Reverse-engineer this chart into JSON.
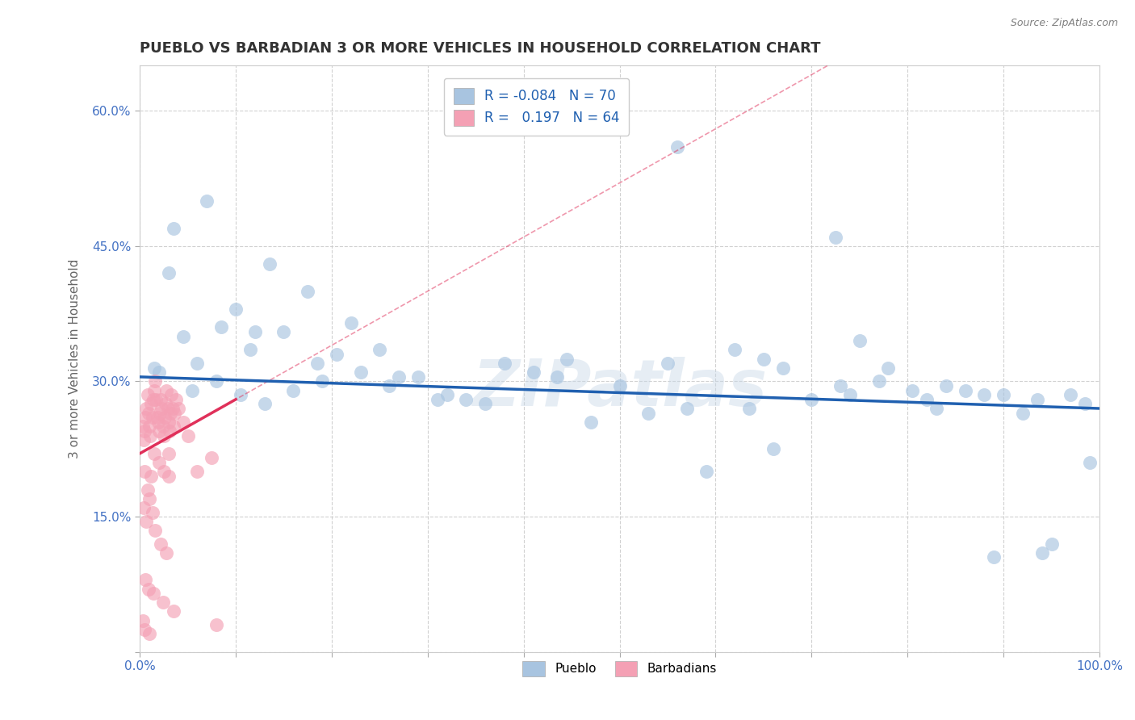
{
  "title": "PUEBLO VS BARBADIAN 3 OR MORE VEHICLES IN HOUSEHOLD CORRELATION CHART",
  "source_text": "Source: ZipAtlas.com",
  "ylabel": "3 or more Vehicles in Household",
  "xlim": [
    0,
    100
  ],
  "ylim": [
    0,
    65
  ],
  "xtick_positions": [
    0,
    10,
    20,
    30,
    40,
    50,
    60,
    70,
    80,
    90,
    100
  ],
  "xtick_labels": [
    "0.0%",
    "",
    "",
    "",
    "",
    "",
    "",
    "",
    "",
    "",
    "100.0%"
  ],
  "ytick_positions": [
    0,
    15,
    30,
    45,
    60
  ],
  "ytick_labels": [
    "",
    "15.0%",
    "30.0%",
    "45.0%",
    "60.0%"
  ],
  "legend_r_pueblo": "-0.084",
  "legend_n_pueblo": "70",
  "legend_r_barbadian": "0.197",
  "legend_n_barbadian": "64",
  "pueblo_color": "#a8c4e0",
  "barbadian_color": "#f4a0b4",
  "trend_pueblo_color": "#2060b0",
  "trend_barbadian_color": "#e0305a",
  "background_color": "#ffffff",
  "grid_color": "#cccccc",
  "watermark_text": "ZIPatlas",
  "title_color": "#333333",
  "axis_label_color": "#666666",
  "tick_color": "#4472c4",
  "title_fontsize": 13,
  "axis_label_fontsize": 11,
  "tick_fontsize": 11,
  "pueblo_x": [
    3.0,
    3.5,
    7.0,
    8.5,
    10.0,
    11.5,
    13.5,
    15.0,
    17.5,
    20.5,
    22.0,
    25.0,
    29.0,
    32.0,
    38.0,
    43.5,
    50.0,
    55.0,
    57.0,
    62.0,
    65.0,
    67.0,
    70.0,
    73.0,
    75.0,
    78.0,
    80.5,
    82.0,
    84.0,
    86.0,
    88.0,
    90.0,
    92.0,
    93.5,
    95.0,
    97.0,
    98.5,
    99.0,
    63.5,
    72.5,
    1.5,
    2.0,
    4.5,
    6.0,
    8.0,
    10.5,
    13.0,
    16.0,
    19.0,
    23.0,
    27.0,
    31.0,
    36.0,
    41.0,
    47.0,
    53.0,
    59.0,
    66.0,
    74.0,
    83.0,
    89.0,
    94.0,
    5.5,
    12.0,
    18.5,
    26.0,
    34.0,
    44.5,
    56.0,
    77.0
  ],
  "pueblo_y": [
    42.0,
    47.0,
    50.0,
    36.0,
    38.0,
    33.5,
    43.0,
    35.5,
    40.0,
    33.0,
    36.5,
    33.5,
    30.5,
    28.5,
    32.0,
    30.5,
    29.5,
    32.0,
    27.0,
    33.5,
    32.5,
    31.5,
    28.0,
    29.5,
    34.5,
    31.5,
    29.0,
    28.0,
    29.5,
    29.0,
    28.5,
    28.5,
    26.5,
    28.0,
    12.0,
    28.5,
    27.5,
    21.0,
    27.0,
    46.0,
    31.5,
    31.0,
    35.0,
    32.0,
    30.0,
    28.5,
    27.5,
    29.0,
    30.0,
    31.0,
    30.5,
    28.0,
    27.5,
    31.0,
    25.5,
    26.5,
    20.0,
    22.5,
    28.5,
    27.0,
    10.5,
    11.0,
    29.0,
    35.5,
    32.0,
    29.5,
    28.0,
    32.5,
    56.0,
    30.0
  ],
  "barbadian_x": [
    0.3,
    0.4,
    0.5,
    0.6,
    0.7,
    0.8,
    0.9,
    1.0,
    1.1,
    1.2,
    1.3,
    1.4,
    1.5,
    1.6,
    1.7,
    1.8,
    1.9,
    2.0,
    2.1,
    2.2,
    2.3,
    2.4,
    2.5,
    2.6,
    2.7,
    2.8,
    2.9,
    3.0,
    3.1,
    3.2,
    3.3,
    3.4,
    3.5,
    3.6,
    3.8,
    4.0,
    4.5,
    5.0,
    6.0,
    7.5,
    0.5,
    0.8,
    1.2,
    1.5,
    2.0,
    2.5,
    3.0,
    0.4,
    0.7,
    1.0,
    1.3,
    1.6,
    2.2,
    2.8,
    0.6,
    0.9,
    1.4,
    2.4,
    3.5,
    8.0,
    0.3,
    0.5,
    1.0,
    3.0
  ],
  "barbadian_y": [
    25.0,
    23.5,
    24.5,
    26.0,
    27.0,
    28.5,
    26.5,
    25.0,
    24.0,
    27.5,
    26.0,
    28.0,
    29.0,
    30.0,
    28.0,
    26.0,
    25.5,
    24.5,
    26.5,
    28.0,
    27.0,
    25.0,
    24.0,
    26.0,
    27.5,
    29.0,
    27.0,
    25.5,
    24.5,
    26.5,
    28.5,
    27.0,
    25.0,
    26.5,
    28.0,
    27.0,
    25.5,
    24.0,
    20.0,
    21.5,
    20.0,
    18.0,
    19.5,
    22.0,
    21.0,
    20.0,
    19.5,
    16.0,
    14.5,
    17.0,
    15.5,
    13.5,
    12.0,
    11.0,
    8.0,
    7.0,
    6.5,
    5.5,
    4.5,
    3.0,
    3.5,
    2.5,
    2.0,
    22.0
  ]
}
